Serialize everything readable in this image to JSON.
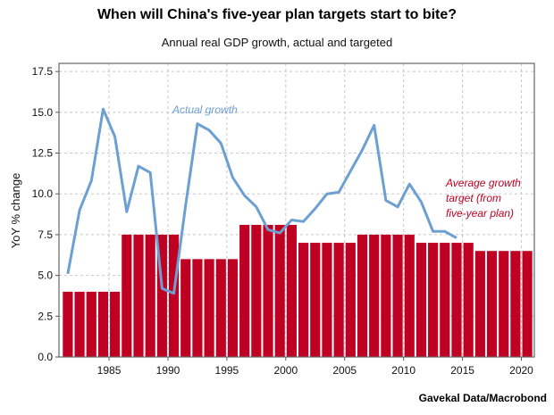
{
  "title": "When will China's five-year plan targets start to bite?",
  "subtitle": "Annual real GDP growth, actual and targeted",
  "source": "Gavekal Data/Macrobond",
  "chart_data": {
    "type": "bar+line",
    "ylabel": "YoY % change",
    "xlabel": "",
    "ylim": [
      0,
      18
    ],
    "xlim": [
      1980.75,
      2021.1
    ],
    "yticks": [
      "0.0",
      "2.5",
      "5.0",
      "7.5",
      "10.0",
      "12.5",
      "15.0",
      "17.5"
    ],
    "xticks": [
      "1985",
      "1990",
      "1995",
      "2000",
      "2005",
      "2010",
      "2015",
      "2020"
    ],
    "grid": true,
    "colors": {
      "bars": "#c00022",
      "line": "#6d9fd2"
    },
    "bars": {
      "annotation": "Average growth target (from five-year plan)",
      "years": [
        1981,
        1982,
        1983,
        1984,
        1985,
        1986,
        1987,
        1988,
        1989,
        1990,
        1991,
        1992,
        1993,
        1994,
        1995,
        1996,
        1997,
        1998,
        1999,
        2000,
        2001,
        2002,
        2003,
        2004,
        2005,
        2006,
        2007,
        2008,
        2009,
        2010,
        2011,
        2012,
        2013,
        2014,
        2015,
        2016,
        2017,
        2018,
        2019,
        2020
      ],
      "values": [
        4,
        4,
        4,
        4,
        4,
        7.5,
        7.5,
        7.5,
        7.5,
        7.5,
        6,
        6,
        6,
        6,
        6,
        8.1,
        8.1,
        8.1,
        8.1,
        8.1,
        7,
        7,
        7,
        7,
        7,
        7.5,
        7.5,
        7.5,
        7.5,
        7.5,
        7,
        7,
        7,
        7,
        7,
        6.5,
        6.5,
        6.5,
        6.5,
        6.5
      ]
    },
    "line": {
      "annotation": "Actual growth",
      "years": [
        1981,
        1982,
        1983,
        1984,
        1985,
        1986,
        1987,
        1988,
        1989,
        1990,
        1991,
        1992,
        1993,
        1994,
        1995,
        1996,
        1997,
        1998,
        1999,
        2000,
        2001,
        2002,
        2003,
        2004,
        2005,
        2006,
        2007,
        2008,
        2009,
        2010,
        2011,
        2012,
        2013,
        2014
      ],
      "values": [
        5.1,
        9.0,
        10.8,
        15.2,
        13.5,
        8.9,
        11.7,
        11.3,
        4.2,
        3.9,
        9.3,
        14.3,
        13.9,
        13.1,
        11.0,
        9.9,
        9.2,
        7.8,
        7.6,
        8.4,
        8.3,
        9.1,
        10.0,
        10.1,
        11.4,
        12.7,
        14.2,
        9.6,
        9.2,
        10.6,
        9.5,
        7.7,
        7.7,
        7.3
      ]
    }
  }
}
